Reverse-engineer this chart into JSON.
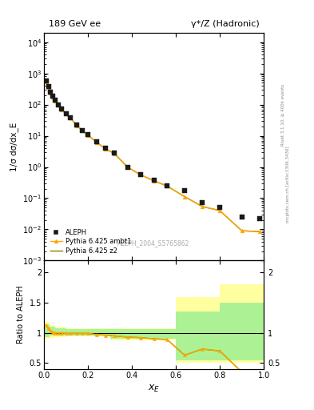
{
  "title_left": "189 GeV ee",
  "title_right": "γ*/Z (Hadronic)",
  "ylabel_main": "1/σ dσ/dx_E",
  "ylabel_ratio": "Ratio to ALEPH",
  "xlabel": "x_E",
  "watermark": "ALEPH_2004_S5765862",
  "right_label_top": "Rivet 3.1.10, ≥ 400k events",
  "right_label_bot": "mcplots.cern.ch [arXiv:1306.3436]",
  "aleph_x": [
    0.01,
    0.02,
    0.03,
    0.04,
    0.05,
    0.065,
    0.08,
    0.1,
    0.12,
    0.15,
    0.175,
    0.2,
    0.24,
    0.28,
    0.32,
    0.38,
    0.44,
    0.5,
    0.56,
    0.64,
    0.72,
    0.8,
    0.9,
    0.98
  ],
  "aleph_y": [
    580,
    370,
    245,
    185,
    140,
    100,
    73,
    52,
    38,
    22,
    15,
    11,
    6.5,
    3.9,
    2.8,
    1.0,
    0.58,
    0.37,
    0.25,
    0.18,
    0.07,
    0.05,
    0.025,
    0.022
  ],
  "ambt1_x": [
    0.01,
    0.02,
    0.03,
    0.04,
    0.05,
    0.065,
    0.08,
    0.1,
    0.12,
    0.15,
    0.175,
    0.2,
    0.24,
    0.28,
    0.32,
    0.38,
    0.44,
    0.5,
    0.56,
    0.64,
    0.72,
    0.8,
    0.9,
    0.98
  ],
  "ambt1_y": [
    550,
    355,
    238,
    175,
    132,
    95,
    70,
    50,
    37,
    21.5,
    14.5,
    10.5,
    6.2,
    3.75,
    2.72,
    0.99,
    0.56,
    0.36,
    0.245,
    0.112,
    0.054,
    0.04,
    0.009,
    0.0085
  ],
  "z2_x": [
    0.01,
    0.02,
    0.03,
    0.04,
    0.05,
    0.065,
    0.08,
    0.1,
    0.12,
    0.15,
    0.175,
    0.2,
    0.24,
    0.28,
    0.32,
    0.38,
    0.44,
    0.5,
    0.56,
    0.64,
    0.72,
    0.8,
    0.9,
    0.98
  ],
  "z2_y": [
    550,
    355,
    238,
    175,
    132,
    95,
    70,
    50,
    37,
    21.5,
    14.5,
    10.5,
    6.2,
    3.75,
    2.72,
    0.99,
    0.56,
    0.36,
    0.245,
    0.112,
    0.054,
    0.04,
    0.009,
    0.0085
  ],
  "ratio_ambt1_x": [
    0.01,
    0.02,
    0.03,
    0.04,
    0.05,
    0.065,
    0.08,
    0.1,
    0.12,
    0.15,
    0.175,
    0.2,
    0.24,
    0.28,
    0.32,
    0.38,
    0.44,
    0.5,
    0.56,
    0.64,
    0.72,
    0.8,
    0.9,
    0.98
  ],
  "ratio_ambt1_y": [
    1.13,
    1.07,
    1.03,
    1.01,
    1.0,
    1.0,
    1.0,
    0.99,
    0.99,
    0.99,
    0.99,
    0.99,
    0.97,
    0.96,
    0.95,
    0.93,
    0.92,
    0.9,
    0.89,
    0.63,
    0.73,
    0.7,
    0.35,
    0.38
  ],
  "ratio_z2_x": [
    0.01,
    0.02,
    0.03,
    0.04,
    0.05,
    0.065,
    0.08,
    0.1,
    0.12,
    0.15,
    0.175,
    0.2,
    0.24,
    0.28,
    0.32,
    0.38,
    0.44,
    0.5,
    0.56,
    0.64,
    0.72,
    0.8,
    0.9,
    0.98
  ],
  "ratio_z2_y": [
    1.13,
    1.07,
    1.03,
    1.01,
    1.0,
    1.0,
    1.0,
    0.99,
    0.99,
    0.99,
    0.99,
    0.99,
    0.97,
    0.96,
    0.95,
    0.93,
    0.92,
    0.9,
    0.89,
    0.63,
    0.73,
    0.7,
    0.35,
    0.38
  ],
  "band_yellow_x": [
    0.0,
    0.025,
    0.05,
    0.1,
    0.2,
    0.3,
    0.4,
    0.5,
    0.6,
    0.7,
    0.8,
    1.0
  ],
  "band_yellow_lo": [
    0.9,
    0.92,
    0.93,
    0.94,
    0.94,
    0.88,
    0.88,
    0.88,
    0.5,
    0.5,
    0.5,
    0.5
  ],
  "band_yellow_hi": [
    1.18,
    1.13,
    1.1,
    1.08,
    1.08,
    1.08,
    1.08,
    1.08,
    1.6,
    1.6,
    1.8,
    1.8
  ],
  "band_green_x": [
    0.0,
    0.025,
    0.05,
    0.1,
    0.2,
    0.3,
    0.4,
    0.5,
    0.6,
    0.7,
    0.8,
    1.0
  ],
  "band_green_lo": [
    0.93,
    0.95,
    0.96,
    0.96,
    0.96,
    0.9,
    0.9,
    0.9,
    0.55,
    0.55,
    0.55,
    0.55
  ],
  "band_green_hi": [
    1.14,
    1.1,
    1.07,
    1.06,
    1.06,
    1.06,
    1.06,
    1.06,
    1.35,
    1.35,
    1.5,
    1.5
  ],
  "color_ambt1": "#FFA500",
  "color_z2": "#808000",
  "color_yellow": "#FFFF80",
  "color_green": "#90EE90",
  "color_aleph": "#1a1a1a",
  "ylim_main": [
    0.001,
    20000.0
  ],
  "ylim_ratio": [
    0.4,
    2.2
  ],
  "xlim": [
    0.0,
    1.0
  ],
  "ratio_yticks": [
    0.5,
    1.0,
    1.5,
    2.0
  ],
  "ratio_yticklabels": [
    "0.5",
    "1",
    "1.5",
    "2"
  ]
}
